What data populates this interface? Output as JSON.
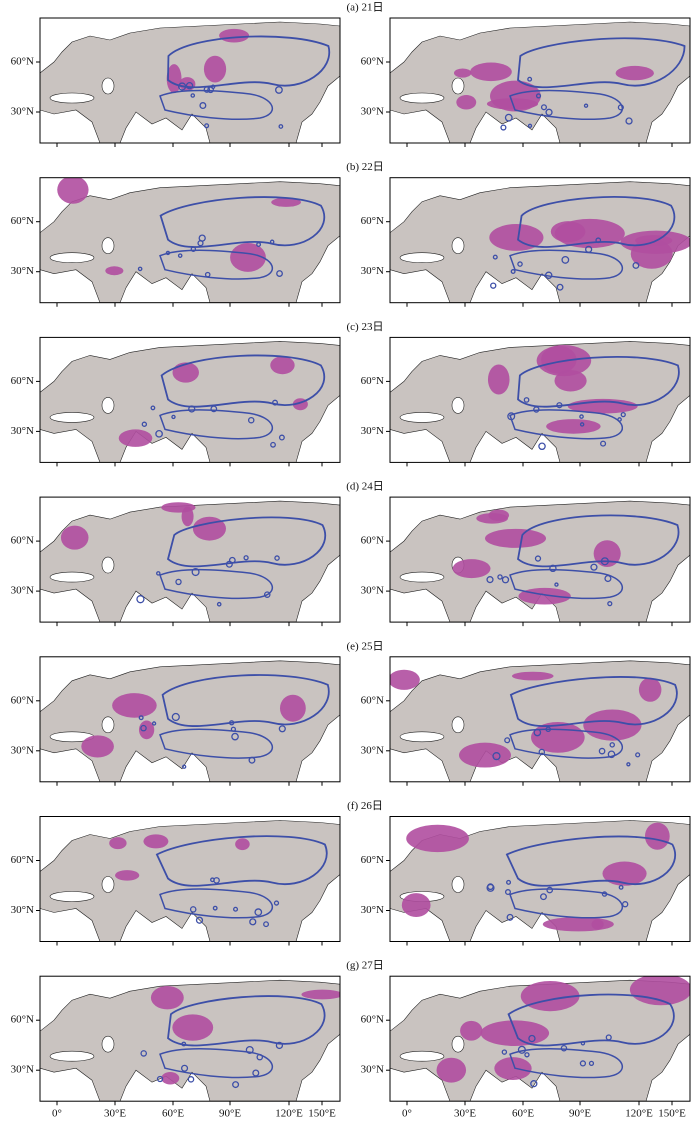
{
  "panels": [
    {
      "label": "(a) 21日"
    },
    {
      "label": "(b) 22日"
    },
    {
      "label": "(c) 23日"
    },
    {
      "label": "(d) 24日"
    },
    {
      "label": "(e) 25日"
    },
    {
      "label": "(f) 26日"
    },
    {
      "label": "(g) 27日"
    }
  ],
  "y_labels": [
    "60°N",
    "30°N"
  ],
  "x_labels": [
    "0°",
    "30°E",
    "60°E",
    "90°E",
    "120°E",
    "150°E"
  ]
}
